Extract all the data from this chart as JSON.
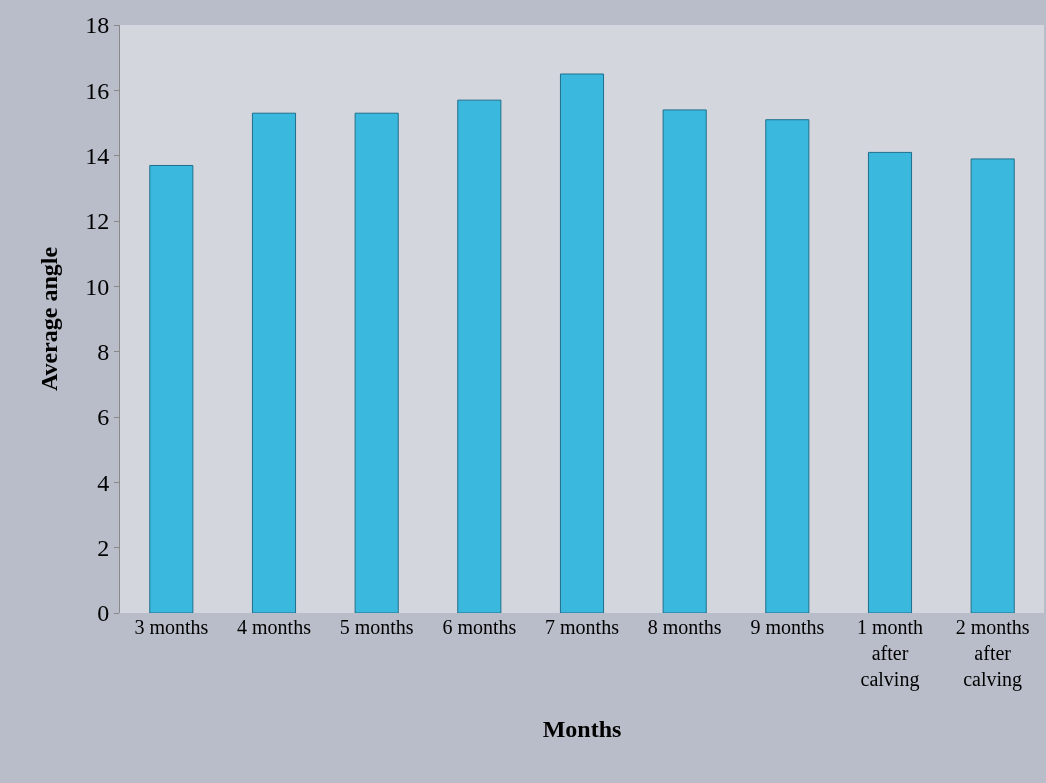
{
  "chart_data": {
    "type": "bar",
    "xlabel": "Months",
    "ylabel": "Average angle",
    "categories": [
      "3 months",
      "4 months",
      "5 months",
      "6 months",
      "7 months",
      "8 months",
      "9 months",
      "1 month after calving",
      "2 months after calving"
    ],
    "values": [
      13.7,
      15.3,
      15.3,
      15.7,
      16.5,
      15.4,
      15.1,
      14.1,
      13.9
    ],
    "color": "#3bb8de",
    "ylim": [
      0,
      18
    ],
    "yticks": [
      0,
      2,
      4,
      6,
      8,
      10,
      12,
      14,
      16,
      18
    ],
    "grid": false,
    "legend": false
  }
}
